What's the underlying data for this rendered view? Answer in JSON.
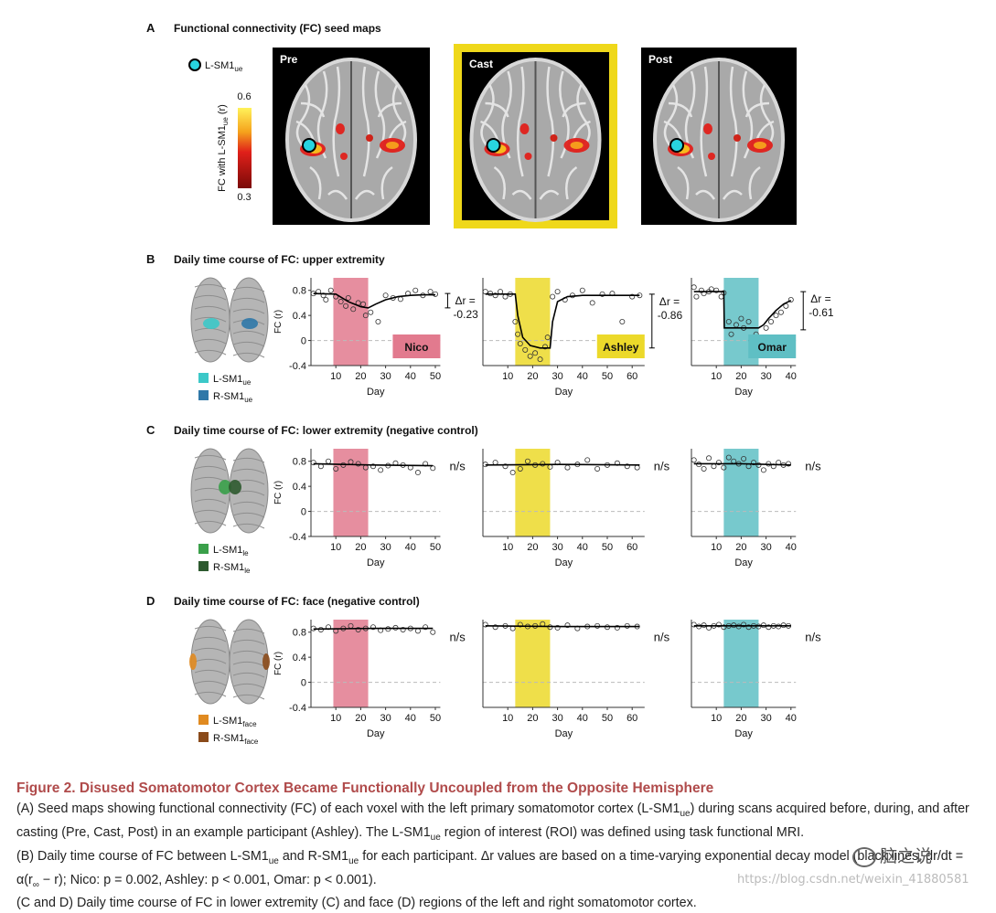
{
  "panel_a": {
    "label": "A",
    "title": "Functional connectivity (FC) seed maps",
    "seed": {
      "text": "L-SM1",
      "sub": "ue"
    },
    "colorbar": {
      "label": {
        "text": "FC with L-SM1",
        "sub": "ue",
        "after": " (r)"
      },
      "max": 0.6,
      "min": 0.3
    },
    "maps": [
      "Pre",
      "Cast",
      "Post"
    ],
    "highlight": 1
  },
  "participants": [
    {
      "name": "Nico",
      "color": "#e27a8e",
      "cast": [
        9,
        23
      ],
      "xlim": [
        0,
        52
      ],
      "xticks": [
        10,
        20,
        30,
        40,
        50
      ]
    },
    {
      "name": "Ashley",
      "color": "#ecd92a",
      "cast": [
        13,
        27
      ],
      "xlim": [
        0,
        65
      ],
      "xticks": [
        10,
        20,
        30,
        40,
        50,
        60
      ]
    },
    {
      "name": "Omar",
      "color": "#5fbfc4",
      "cast": [
        13,
        27
      ],
      "xlim": [
        0,
        42
      ],
      "xticks": [
        10,
        20,
        30,
        40
      ]
    }
  ],
  "rows": [
    {
      "label": "B",
      "title": "Daily time course of FC: upper extremity",
      "participant_labels": true,
      "roi": [
        {
          "text": "L-SM1",
          "sub": "ue",
          "color": "#3cc8c8"
        },
        {
          "text": "R-SM1",
          "sub": "ue",
          "color": "#2f78a8"
        }
      ],
      "ylabel": "FC (r)",
      "xlabel": "Day",
      "ylim": [
        -0.4,
        1.0
      ],
      "yticks": [
        -0.4,
        0,
        0.4,
        0.8
      ],
      "charts": [
        {
          "points": {
            "x": [
              1,
              3,
              5,
              6,
              8,
              10,
              12,
              14,
              15,
              17,
              19,
              21,
              22,
              24,
              27,
              30,
              33,
              36,
              39,
              42,
              45,
              48,
              50
            ],
            "y": [
              0.75,
              0.78,
              0.72,
              0.65,
              0.8,
              0.7,
              0.62,
              0.55,
              0.68,
              0.5,
              0.6,
              0.58,
              0.4,
              0.45,
              0.3,
              0.72,
              0.68,
              0.66,
              0.75,
              0.8,
              0.72,
              0.78,
              0.74
            ]
          },
          "fit": {
            "x": [
              1,
              10,
              15,
              20,
              23,
              26,
              30,
              35,
              40,
              45,
              50
            ],
            "y": [
              0.75,
              0.74,
              0.62,
              0.54,
              0.52,
              0.58,
              0.65,
              0.7,
              0.72,
              0.73,
              0.73
            ]
          },
          "delta_r": {
            "label": "Δr =",
            "value": -0.23
          }
        },
        {
          "points": {
            "x": [
              1,
              3,
              5,
              7,
              9,
              11,
              13,
              14,
              15,
              17,
              19,
              21,
              23,
              25,
              26,
              28,
              30,
              33,
              36,
              40,
              44,
              48,
              52,
              56,
              60,
              63
            ],
            "y": [
              0.78,
              0.75,
              0.72,
              0.78,
              0.7,
              0.74,
              0.3,
              0.1,
              -0.05,
              -0.15,
              -0.25,
              -0.2,
              -0.3,
              -0.1,
              0.05,
              0.7,
              0.78,
              0.65,
              0.72,
              0.8,
              0.6,
              0.74,
              0.75,
              0.3,
              0.7,
              0.72
            ]
          },
          "fit": {
            "x": [
              1,
              13,
              14,
              16,
              19,
              23,
              27,
              28,
              30,
              34,
              40,
              50,
              63
            ],
            "y": [
              0.74,
              0.74,
              0.4,
              0.05,
              -0.08,
              -0.12,
              -0.12,
              0.3,
              0.62,
              0.7,
              0.72,
              0.72,
              0.72
            ]
          },
          "delta_r": {
            "label": "Δr =",
            "value": -0.86
          }
        },
        {
          "points": {
            "x": [
              1,
              2,
              4,
              5,
              7,
              8,
              10,
              12,
              13,
              15,
              16,
              18,
              20,
              21,
              23,
              24,
              26,
              28,
              30,
              32,
              34,
              36,
              38,
              40
            ],
            "y": [
              0.85,
              0.7,
              0.8,
              0.75,
              0.78,
              0.82,
              0.8,
              0.7,
              0.76,
              0.3,
              0.1,
              0.25,
              0.35,
              0.2,
              0.3,
              0.0,
              0.1,
              0.05,
              0.2,
              0.3,
              0.4,
              0.45,
              0.55,
              0.65
            ]
          },
          "fit": {
            "x": [
              1,
              13,
              13.2,
              27,
              29,
              31,
              34,
              37,
              40
            ],
            "y": [
              0.78,
              0.78,
              0.2,
              0.2,
              0.25,
              0.35,
              0.48,
              0.58,
              0.64
            ]
          },
          "delta_r": {
            "label": "Δr =",
            "value": -0.61
          }
        }
      ]
    },
    {
      "label": "C",
      "title": "Daily time course of FC: lower extremity (negative control)",
      "roi": [
        {
          "text": "L-SM1",
          "sub": "le",
          "color": "#3aa04a"
        },
        {
          "text": "R-SM1",
          "sub": "le",
          "color": "#2d5a2f"
        }
      ],
      "ylabel": "FC (r)",
      "xlabel": "Day",
      "ylim": [
        -0.4,
        1.0
      ],
      "yticks": [
        -0.4,
        0,
        0.4,
        0.8
      ],
      "charts": [
        {
          "points": {
            "x": [
              1,
              4,
              7,
              10,
              13,
              16,
              19,
              22,
              25,
              28,
              31,
              34,
              37,
              40,
              43,
              46,
              49
            ],
            "y": [
              0.78,
              0.72,
              0.8,
              0.68,
              0.74,
              0.79,
              0.76,
              0.7,
              0.72,
              0.66,
              0.73,
              0.77,
              0.74,
              0.7,
              0.62,
              0.76,
              0.69
            ]
          },
          "fit": {
            "x": [
              1,
              25,
              49
            ],
            "y": [
              0.76,
              0.74,
              0.73
            ]
          },
          "significance": "n/s"
        },
        {
          "points": {
            "x": [
              1,
              5,
              9,
              12,
              15,
              18,
              21,
              24,
              27,
              30,
              34,
              38,
              42,
              46,
              50,
              54,
              58,
              62
            ],
            "y": [
              0.75,
              0.78,
              0.72,
              0.62,
              0.68,
              0.8,
              0.74,
              0.76,
              0.71,
              0.78,
              0.7,
              0.75,
              0.82,
              0.68,
              0.74,
              0.77,
              0.72,
              0.7
            ]
          },
          "fit": {
            "x": [
              1,
              31,
              63
            ],
            "y": [
              0.74,
              0.75,
              0.74
            ]
          },
          "significance": "n/s"
        },
        {
          "points": {
            "x": [
              1,
              3,
              5,
              7,
              9,
              11,
              13,
              15,
              17,
              19,
              21,
              23,
              25,
              27,
              29,
              31,
              33,
              35,
              37,
              39
            ],
            "y": [
              0.82,
              0.75,
              0.68,
              0.85,
              0.72,
              0.78,
              0.7,
              0.86,
              0.8,
              0.76,
              0.84,
              0.72,
              0.78,
              0.74,
              0.66,
              0.76,
              0.72,
              0.78,
              0.74,
              0.76
            ]
          },
          "fit": {
            "x": [
              1,
              20,
              40
            ],
            "y": [
              0.76,
              0.76,
              0.74
            ]
          },
          "significance": "n/s"
        }
      ]
    },
    {
      "label": "D",
      "title": "Daily time course of FC: face (negative control)",
      "roi": [
        {
          "text": "L-SM1",
          "sub": "face",
          "color": "#e08a20"
        },
        {
          "text": "R-SM1",
          "sub": "face",
          "color": "#8a4a1a"
        }
      ],
      "ylabel": "FC (r)",
      "xlabel": "Day",
      "ylim": [
        -0.4,
        1.0
      ],
      "yticks": [
        -0.4,
        0,
        0.4,
        0.8
      ],
      "charts": [
        {
          "points": {
            "x": [
              1,
              4,
              7,
              10,
              13,
              16,
              19,
              22,
              25,
              28,
              31,
              34,
              37,
              40,
              43,
              46,
              49
            ],
            "y": [
              0.86,
              0.84,
              0.88,
              0.82,
              0.86,
              0.9,
              0.84,
              0.86,
              0.88,
              0.83,
              0.85,
              0.87,
              0.84,
              0.86,
              0.82,
              0.88,
              0.8
            ]
          },
          "fit": {
            "x": [
              1,
              25,
              49
            ],
            "y": [
              0.85,
              0.86,
              0.86
            ]
          },
          "significance": "n/s"
        },
        {
          "points": {
            "x": [
              1,
              5,
              9,
              12,
              15,
              18,
              21,
              24,
              27,
              30,
              34,
              38,
              42,
              46,
              50,
              54,
              58,
              62
            ],
            "y": [
              0.92,
              0.88,
              0.9,
              0.86,
              0.92,
              0.89,
              0.9,
              0.93,
              0.88,
              0.87,
              0.91,
              0.86,
              0.89,
              0.9,
              0.88,
              0.87,
              0.9,
              0.89
            ]
          },
          "fit": {
            "x": [
              1,
              31,
              63
            ],
            "y": [
              0.9,
              0.89,
              0.89
            ]
          },
          "significance": "n/s"
        },
        {
          "points": {
            "x": [
              1,
              3,
              5,
              7,
              9,
              11,
              13,
              15,
              17,
              19,
              21,
              23,
              25,
              27,
              29,
              31,
              33,
              35,
              37,
              39
            ],
            "y": [
              0.92,
              0.89,
              0.91,
              0.87,
              0.9,
              0.92,
              0.88,
              0.9,
              0.91,
              0.89,
              0.92,
              0.88,
              0.9,
              0.89,
              0.91,
              0.88,
              0.9,
              0.89,
              0.91,
              0.9
            ]
          },
          "fit": {
            "x": [
              1,
              20,
              40
            ],
            "y": [
              0.9,
              0.9,
              0.9
            ]
          },
          "significance": "n/s"
        }
      ]
    }
  ],
  "caption": {
    "title": "Figure 2. Disused Somatomotor Cortex Became Functionally Uncoupled from the Opposite Hemisphere",
    "paragraphs": [
      [
        "(A) Seed maps showing functional connectivity (FC) of each voxel with the left primary somatomotor cortex (L-SM1",
        "ue",
        ") during scans acquired before, during, and after casting (Pre, Cast, Post) in an example participant (Ashley). The L-SM1",
        "ue",
        " region of interest (ROI) was defined using task functional MRI."
      ],
      [
        "(B) Daily time course of FC between L-SM1",
        "ue",
        " and R-SM1",
        "ue",
        " for each participant. Δr values are based on a time-varying exponential decay model (black lines, dr/dt = α(r",
        "∞",
        " − r); Nico: p = 0.002, Ashley: p < 0.001, Omar: p < 0.001)."
      ],
      [
        "(C and D) Daily time course of FC in lower extremity (C) and face (D) regions of the left and right somatomotor cortex."
      ]
    ]
  },
  "watermark": {
    "brand": "脑之说",
    "url": "https://blog.csdn.net/weixin_41880581"
  }
}
